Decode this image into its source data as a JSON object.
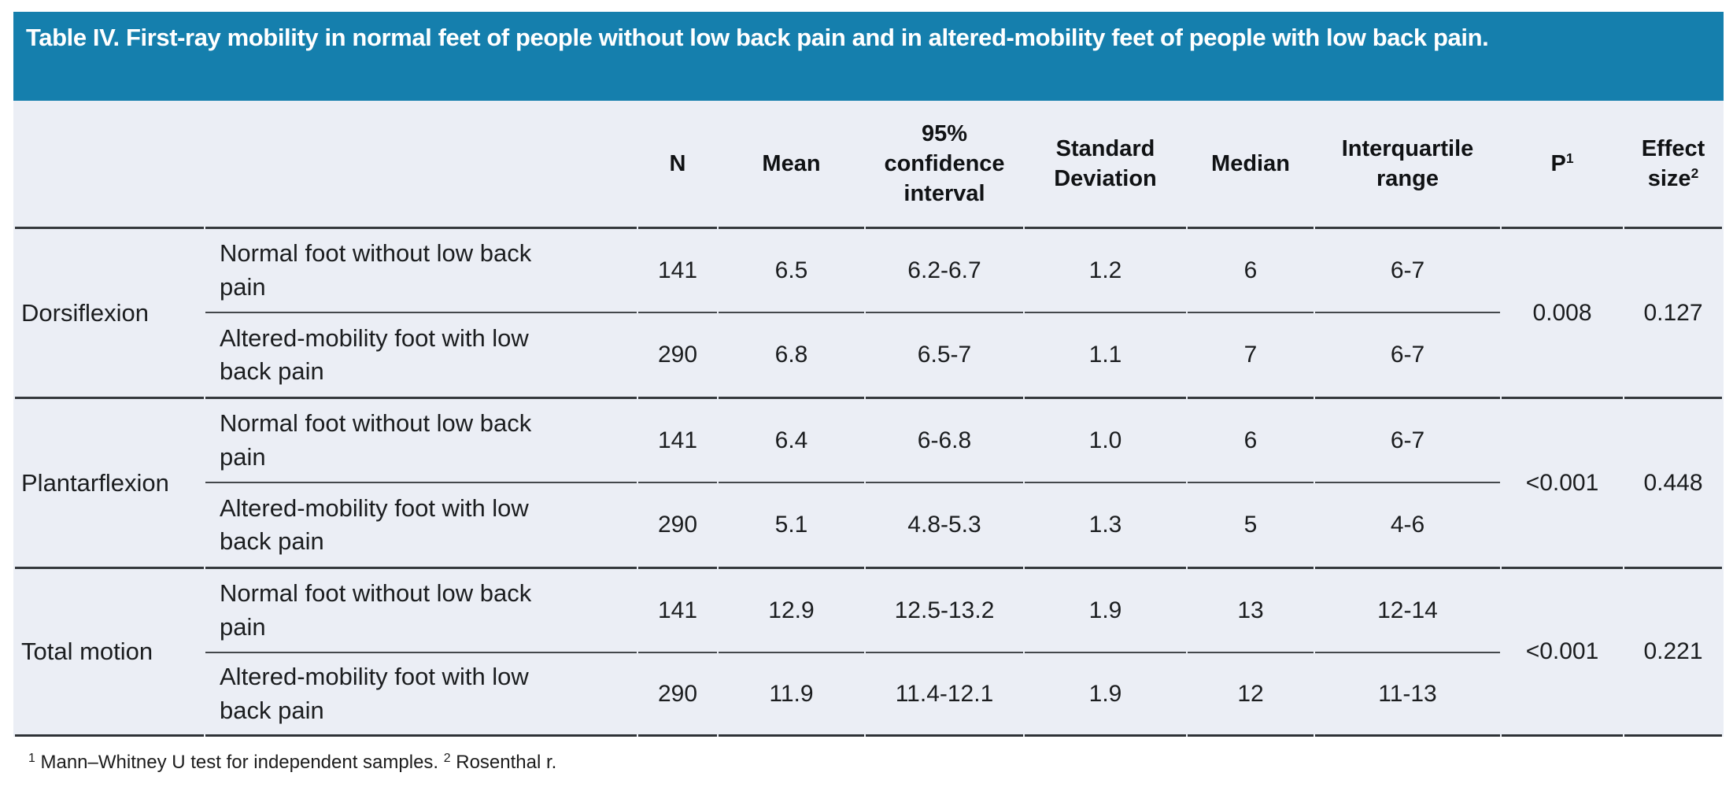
{
  "title": "Table IV. First-ray mobility in normal feet of people without low back pain and in altered-mobility feet of people with low back pain.",
  "colors": {
    "title_bar_bg": "#157fad",
    "title_text": "#ffffff",
    "table_bg": "#ebeef5",
    "rule_thick": "#35393d",
    "rule_thin": "#43474b",
    "body_text": "#1b1d1f"
  },
  "headers": {
    "n": "N",
    "mean": "Mean",
    "ci": "95% confidence interval",
    "sd": "Standard Deviation",
    "median": "Median",
    "iqr": "Interquartile range",
    "p_label": "P",
    "p_sup": "1",
    "effect_label": "Effect size",
    "effect_sup": "2"
  },
  "groups": [
    {
      "label": "Dorsiflexion",
      "p": "0.008",
      "effect": "0.127",
      "rows": [
        {
          "description": "Normal foot without low back pain",
          "n": "141",
          "mean": "6.5",
          "ci": "6.2-6.7",
          "sd": "1.2",
          "median": "6",
          "iqr": "6-7"
        },
        {
          "description": "Altered-mobility foot with low back pain",
          "n": "290",
          "mean": "6.8",
          "ci": "6.5-7",
          "sd": "1.1",
          "median": "7",
          "iqr": "6-7"
        }
      ]
    },
    {
      "label": "Plantarflexion",
      "p": "<0.001",
      "effect": "0.448",
      "rows": [
        {
          "description": "Normal foot without low back pain",
          "n": "141",
          "mean": "6.4",
          "ci": "6-6.8",
          "sd": "1.0",
          "median": "6",
          "iqr": "6-7"
        },
        {
          "description": "Altered-mobility foot with low back pain",
          "n": "290",
          "mean": "5.1",
          "ci": "4.8-5.3",
          "sd": "1.3",
          "median": "5",
          "iqr": "4-6"
        }
      ]
    },
    {
      "label": "Total motion",
      "p": "<0.001",
      "effect": "0.221",
      "rows": [
        {
          "description": "Normal foot without low back pain",
          "n": "141",
          "mean": "12.9",
          "ci": "12.5-13.2",
          "sd": "1.9",
          "median": "13",
          "iqr": "12-14"
        },
        {
          "description": "Altered-mobility foot with low back pain",
          "n": "290",
          "mean": "11.9",
          "ci": "11.4-12.1",
          "sd": "1.9",
          "median": "12",
          "iqr": "11-13"
        }
      ]
    }
  ],
  "footnote": {
    "sup1": "1",
    "text1": "Mann–Whitney U test for independent samples.",
    "sup2": "2",
    "text2": "Rosenthal r."
  }
}
